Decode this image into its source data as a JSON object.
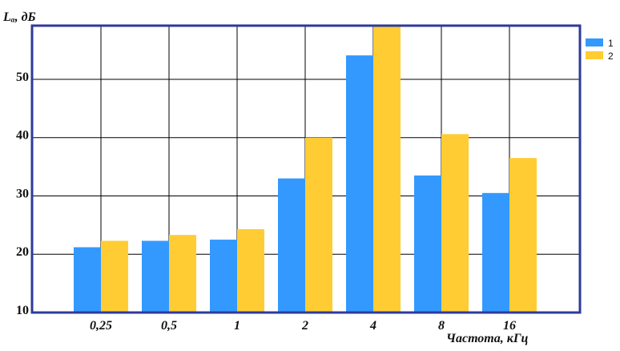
{
  "chart_data": {
    "type": "bar",
    "ylabel": "Lₐ, дБ",
    "xlabel": "Частота, кГц",
    "categories": [
      "0,25",
      "0,5",
      "1",
      "2",
      "4",
      "8",
      "16"
    ],
    "series": [
      {
        "name": "1",
        "color": "#3399ff",
        "values": [
          21.2,
          22.3,
          22.5,
          33,
          54.1,
          33.5,
          30.5
        ]
      },
      {
        "name": "2",
        "color": "#ffcc33",
        "values": [
          22.3,
          23.3,
          24.3,
          40,
          59.2,
          40.6,
          36.5
        ]
      }
    ],
    "yticks": [
      10,
      20,
      30,
      40,
      50
    ],
    "ylim": [
      10,
      59.2
    ],
    "grid": true,
    "legend_position": "top-right"
  }
}
